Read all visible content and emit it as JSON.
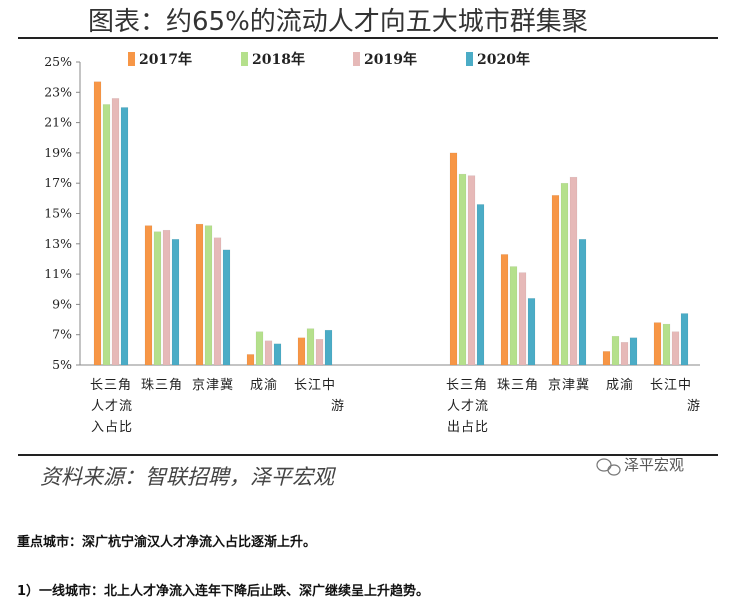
{
  "chart_data": {
    "type": "bar",
    "title": "图表：约65%的流动人才向五大城市群集聚",
    "groups": [
      {
        "label": [
          "长三角",
          "人才流",
          "入占比"
        ],
        "categories": [
          {
            "label": [
              "长三角",
              "人才流",
              "入占比"
            ],
            "values": [
              23.7,
              22.2,
              22.6,
              22.0
            ]
          },
          {
            "label": [
              "珠三角"
            ],
            "values": [
              14.2,
              13.8,
              13.9,
              13.3
            ]
          },
          {
            "label": [
              "京津冀"
            ],
            "values": [
              14.3,
              14.2,
              13.4,
              12.6
            ]
          },
          {
            "label": [
              "成渝"
            ],
            "values": [
              5.7,
              7.2,
              6.6,
              6.4
            ]
          },
          {
            "label": [
              "长江中",
              "游"
            ],
            "values": [
              6.8,
              7.4,
              6.7,
              7.3
            ]
          }
        ]
      },
      {
        "label": [
          "长三角",
          "人才流",
          "出占比"
        ],
        "categories": [
          {
            "label": [
              "长三角",
              "人才流",
              "出占比"
            ],
            "values": [
              19.0,
              17.6,
              17.5,
              15.6
            ]
          },
          {
            "label": [
              "珠三角"
            ],
            "values": [
              12.3,
              11.5,
              11.1,
              9.4
            ]
          },
          {
            "label": [
              "京津冀"
            ],
            "values": [
              16.2,
              17.0,
              17.4,
              13.3
            ]
          },
          {
            "label": [
              "成渝"
            ],
            "values": [
              5.9,
              6.9,
              6.5,
              6.8
            ]
          },
          {
            "label": [
              "长江中",
              "游"
            ],
            "values": [
              7.8,
              7.7,
              7.2,
              8.4
            ]
          }
        ]
      }
    ],
    "series": [
      {
        "name": "2017年",
        "color": "#F79646"
      },
      {
        "name": "2018年",
        "color": "#B5E08C"
      },
      {
        "name": "2019年",
        "color": "#E6B9B8"
      },
      {
        "name": "2020年",
        "color": "#4BACC6"
      }
    ],
    "yticks": [
      "25%",
      "23%",
      "21%",
      "19%",
      "17%",
      "15%",
      "13%",
      "11%",
      "9%",
      "7%",
      "5%"
    ],
    "ylim": [
      5,
      25
    ],
    "legend_position": "top",
    "grid": false
  },
  "source": "资料来源：智联招聘，泽平宏观",
  "watermark": "泽平宏观",
  "text_lines": [
    "重点城市：深广杭宁渝汉人才净流入占比逐渐上升。",
    "1）一线城市：北上人才净流入连年下降后止跌、深广继续呈上升趋势。"
  ]
}
